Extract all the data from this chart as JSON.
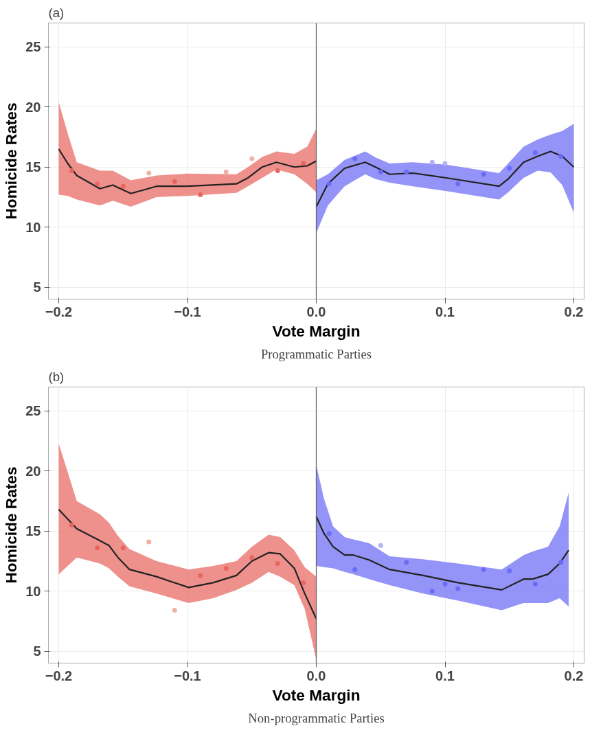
{
  "chart_data": [
    {
      "type": "line",
      "xlabel": "Vote Margin",
      "ylabel": "Homicide Rates",
      "annotations": [
        "(a)",
        "Programmatic Parties"
      ],
      "xlim": [
        -0.208,
        0.208
      ],
      "ylim": [
        4,
        27
      ],
      "xticks": [
        {
          "value": -0.2,
          "label": "−0.2"
        },
        {
          "value": -0.1,
          "label": "−0.1"
        },
        {
          "value": 0,
          "label": "0.0"
        },
        {
          "value": 0.1,
          "label": "0.1"
        },
        {
          "value": 0.2,
          "label": "0.2"
        }
      ],
      "yticks": [
        5,
        10,
        15,
        20,
        25
      ],
      "grid": true,
      "ref_lines": [
        {
          "axis": "x",
          "value": 0,
          "color": "#666666"
        }
      ],
      "series": [
        {
          "color": "#222222",
          "x": [
            -0.2,
            -0.193,
            -0.186,
            -0.168,
            -0.158,
            -0.144,
            -0.124,
            -0.1,
            -0.062,
            -0.053,
            -0.042,
            -0.031,
            -0.017,
            -0.007,
            0
          ],
          "values": [
            16.5,
            15.3,
            14.3,
            13.2,
            13.5,
            12.8,
            13.4,
            13.4,
            13.6,
            14.1,
            15.0,
            15.4,
            15.0,
            15.1,
            15.5
          ],
          "lower": [
            12.7,
            12.6,
            12.3,
            11.8,
            12.2,
            11.7,
            12.5,
            12.6,
            12.85,
            13.4,
            14.1,
            14.8,
            14.4,
            13.6,
            12.9
          ],
          "upper": [
            20.4,
            17.8,
            15.4,
            14.7,
            14.7,
            13.9,
            14.3,
            14.45,
            14.4,
            15.0,
            15.85,
            16.3,
            16.1,
            16.7,
            18.2
          ]
        },
        {
          "color": "#222222",
          "x": [
            0,
            0.009,
            0.022,
            0.038,
            0.046,
            0.057,
            0.075,
            0.101,
            0.142,
            0.149,
            0.161,
            0.172,
            0.182,
            0.191,
            0.2
          ],
          "values": [
            11.7,
            13.6,
            14.9,
            15.4,
            15.0,
            14.4,
            14.5,
            14.1,
            13.4,
            14.0,
            15.4,
            15.9,
            16.3,
            15.9,
            15.0
          ],
          "lower": [
            9.5,
            11.8,
            13.4,
            14.4,
            14.0,
            13.7,
            13.4,
            13.0,
            12.3,
            12.9,
            14.1,
            14.7,
            14.55,
            13.5,
            11.2
          ],
          "upper": [
            13.9,
            14.4,
            15.6,
            16.3,
            15.8,
            15.3,
            15.4,
            15.2,
            14.5,
            15.3,
            16.7,
            17.3,
            17.7,
            18.0,
            18.6
          ]
        },
        {
          "type": "scatter",
          "x": [
            -0.19,
            -0.17,
            -0.15,
            -0.13,
            -0.11,
            -0.09,
            -0.07,
            -0.05,
            -0.03,
            -0.01
          ],
          "values": [
            14.7,
            13.6,
            13.4,
            14.5,
            13.8,
            12.7,
            14.6,
            15.7,
            14.7,
            15.3
          ],
          "colors": [
            "#e8665f",
            "#e8665f",
            "#e8665f",
            "#f0b2a3",
            "#e8665f",
            "#e8665f",
            "#f0b2a3",
            "#f0b2a3",
            "#e8665f",
            "#e8665f"
          ]
        },
        {
          "type": "scatter",
          "x": [
            0.01,
            0.03,
            0.05,
            0.07,
            0.09,
            0.1,
            0.11,
            0.13,
            0.15,
            0.17,
            0.19
          ],
          "values": [
            13.6,
            15.7,
            14.6,
            14.6,
            15.4,
            15.3,
            13.6,
            14.4,
            14.9,
            16.2,
            15.9
          ],
          "colors": [
            "#6b6bf5",
            "#6b6bf5",
            "#6b6bf5",
            "#6b6bf5",
            "#aeb4f7",
            "#aeb4f7",
            "#6b6bf5",
            "#6b6bf5",
            "#6b6bf5",
            "#6b6bf5",
            "#6b6bf5"
          ]
        }
      ]
    },
    {
      "type": "line",
      "xlabel": "Vote Margin",
      "ylabel": "Homicide Rates",
      "annotations": [
        "(b)",
        "Non-programmatic Parties"
      ],
      "xlim": [
        -0.208,
        0.208
      ],
      "ylim": [
        4,
        27
      ],
      "xticks": [
        {
          "value": -0.2,
          "label": "−0.2"
        },
        {
          "value": -0.1,
          "label": "−0.1"
        },
        {
          "value": 0,
          "label": "0.0"
        },
        {
          "value": 0.1,
          "label": "0.1"
        },
        {
          "value": 0.2,
          "label": "0.2"
        }
      ],
      "yticks": [
        5,
        10,
        15,
        20,
        25
      ],
      "grid": true,
      "ref_lines": [
        {
          "axis": "x",
          "value": 0,
          "color": "#666666"
        }
      ],
      "series": [
        {
          "color": "#222222",
          "x": [
            -0.2,
            -0.186,
            -0.168,
            -0.161,
            -0.154,
            -0.145,
            -0.124,
            -0.099,
            -0.08,
            -0.062,
            -0.05,
            -0.037,
            -0.028,
            -0.017,
            -0.009,
            0
          ],
          "values": [
            16.8,
            15.2,
            14.2,
            13.8,
            12.8,
            11.8,
            11.2,
            10.3,
            10.7,
            11.3,
            12.5,
            13.2,
            13.1,
            11.9,
            9.8,
            7.7
          ],
          "lower": [
            11.4,
            12.8,
            12.3,
            11.9,
            11.2,
            10.4,
            9.8,
            9.0,
            9.4,
            10.1,
            10.7,
            11.6,
            11.2,
            10.5,
            8.5,
            4.3
          ],
          "upper": [
            22.3,
            17.5,
            16.4,
            15.7,
            14.6,
            13.5,
            12.5,
            11.8,
            12.1,
            12.5,
            13.7,
            14.7,
            14.5,
            13.4,
            12.0,
            11.2
          ]
        },
        {
          "color": "#222222",
          "x": [
            0,
            0.006,
            0.013,
            0.022,
            0.029,
            0.041,
            0.057,
            0.083,
            0.11,
            0.144,
            0.161,
            0.168,
            0.18,
            0.189,
            0.196
          ],
          "values": [
            16.2,
            14.8,
            13.7,
            13.0,
            13.0,
            12.6,
            11.8,
            11.3,
            10.7,
            10.1,
            11.0,
            11.0,
            11.4,
            12.3,
            13.4
          ],
          "lower": [
            12.1,
            12.0,
            11.9,
            11.6,
            11.4,
            11.0,
            10.5,
            9.8,
            9.2,
            8.4,
            9.0,
            9.0,
            9.0,
            9.4,
            8.7
          ],
          "upper": [
            20.5,
            17.7,
            15.4,
            14.5,
            14.3,
            14.0,
            12.9,
            12.65,
            12.3,
            11.8,
            13.0,
            13.3,
            13.7,
            15.4,
            18.2
          ]
        },
        {
          "type": "scatter",
          "x": [
            -0.19,
            -0.17,
            -0.15,
            -0.13,
            -0.11,
            -0.09,
            -0.07,
            -0.05,
            -0.03,
            -0.01
          ],
          "values": [
            15.5,
            13.6,
            13.6,
            14.1,
            8.4,
            11.3,
            11.9,
            12.8,
            12.3,
            10.7
          ],
          "colors": [
            "#e8665f",
            "#e8665f",
            "#e8665f",
            "#f0b2a3",
            "#f0b2a3",
            "#e8665f",
            "#e8665f",
            "#e8665f",
            "#e8665f",
            "#e8665f"
          ]
        },
        {
          "type": "scatter",
          "x": [
            0.01,
            0.03,
            0.05,
            0.07,
            0.09,
            0.1,
            0.11,
            0.13,
            0.15,
            0.17,
            0.19
          ],
          "values": [
            14.8,
            11.8,
            13.8,
            12.4,
            10.0,
            10.6,
            10.2,
            11.8,
            11.7,
            10.6,
            12.4
          ],
          "colors": [
            "#6b6bf5",
            "#6b6bf5",
            "#aeb4f7",
            "#6b6bf5",
            "#6b6bf5",
            "#6b6bf5",
            "#6b6bf5",
            "#6b6bf5",
            "#6b6bf5",
            "#6b6bf5",
            "#6b6bf5"
          ]
        }
      ]
    }
  ]
}
